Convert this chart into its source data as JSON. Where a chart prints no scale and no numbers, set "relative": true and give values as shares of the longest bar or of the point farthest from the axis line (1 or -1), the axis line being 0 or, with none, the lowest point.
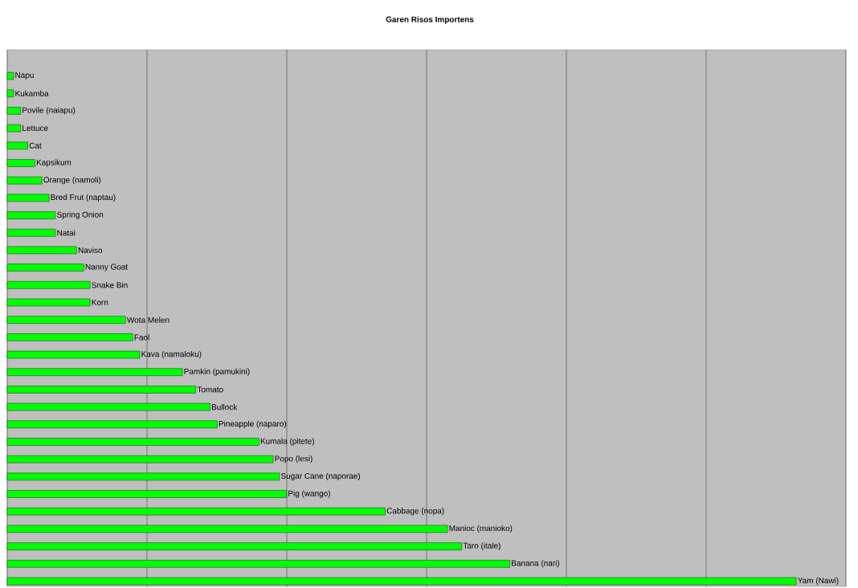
{
  "chart_data": {
    "type": "bar",
    "orientation": "horizontal",
    "relative": true,
    "title": "Garen Risos Importens",
    "categories": [
      "Napu",
      "Kukamba",
      "Povile (naiapu)",
      "Lettuce",
      "Cat",
      "Kapsikum",
      "Orange (namoli)",
      "Bred Frut (naptau)",
      "Spring Onion",
      "Natai",
      "Naviso",
      "Nanny Goat",
      "Snake Bin",
      "Korn",
      "Wota Melen",
      "Faol",
      "Kava (namaloku)",
      "Pamkin (pamukini)",
      "Tomato",
      "Bullock",
      "Pineapple (naparo)",
      "Kumala (pitete)",
      "Popo (lesi)",
      "Sugar Cane (naporae)",
      "Pig (wango)",
      "Cabbage (nopa)",
      "Manioc (manioko)",
      "Taro (itale)",
      "Banana (nari)",
      "Yam (Nawi)"
    ],
    "values": [
      0.008,
      0.008,
      0.017,
      0.017,
      0.026,
      0.035,
      0.044,
      0.053,
      0.061,
      0.061,
      0.088,
      0.097,
      0.105,
      0.105,
      0.15,
      0.159,
      0.168,
      0.222,
      0.239,
      0.257,
      0.266,
      0.319,
      0.337,
      0.345,
      0.354,
      0.479,
      0.558,
      0.576,
      0.637,
      1
    ],
    "color": "#00ff00",
    "grid": "x"
  }
}
